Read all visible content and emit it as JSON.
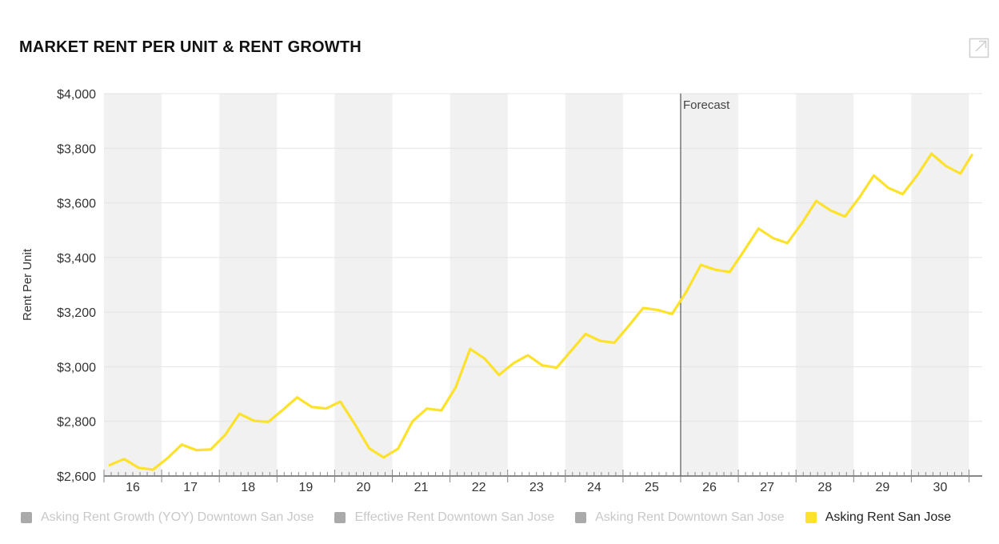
{
  "title": "MARKET RENT PER UNIT & RENT GROWTH",
  "icons": {
    "expand": "expand-icon"
  },
  "colors": {
    "series": "#fce22c",
    "band": "#f1f1f1",
    "grid": "#e4e4e4",
    "axis": "#888888",
    "legend_inactive": "#aaaaaa",
    "forecast_line": "#555555"
  },
  "legend": [
    {
      "label": "Asking Rent Growth (YOY) Downtown San Jose",
      "active": false
    },
    {
      "label": "Effective Rent Downtown San Jose",
      "active": false
    },
    {
      "label": "Asking Rent Downtown San Jose",
      "active": false
    },
    {
      "label": "Asking Rent San Jose",
      "active": true
    }
  ],
  "chart_data": {
    "type": "line",
    "title": "MARKET RENT PER UNIT & RENT GROWTH",
    "xlabel": "",
    "ylabel": "Rent Per Unit",
    "ylim": [
      2600,
      4000
    ],
    "yticks": [
      2600,
      2800,
      3000,
      3200,
      3400,
      3600,
      3800,
      4000
    ],
    "ytick_labels": [
      "$2,600",
      "$2,800",
      "$3,000",
      "$3,200",
      "$3,400",
      "$3,600",
      "$3,800",
      "$4,000"
    ],
    "xlim": [
      2015.5,
      2030.55
    ],
    "categories": [
      "16",
      "17",
      "18",
      "19",
      "20",
      "21",
      "22",
      "23",
      "24",
      "25",
      "26",
      "27",
      "28",
      "29",
      "30"
    ],
    "category_positions": [
      2016,
      2017,
      2018,
      2019,
      2020,
      2021,
      2022,
      2023,
      2024,
      2025,
      2026,
      2027,
      2028,
      2029,
      2030
    ],
    "forecast": {
      "x": 2025.5,
      "label": "Forecast"
    },
    "grid": true,
    "legend_position": "bottom",
    "series": [
      {
        "name": "Asking Rent San Jose",
        "x": [
          2015.6,
          2015.85,
          2016.1,
          2016.35,
          2016.6,
          2016.85,
          2017.1,
          2017.35,
          2017.6,
          2017.85,
          2018.1,
          2018.35,
          2018.6,
          2018.85,
          2019.1,
          2019.35,
          2019.6,
          2019.85,
          2020.1,
          2020.35,
          2020.6,
          2020.85,
          2021.1,
          2021.35,
          2021.6,
          2021.85,
          2022.1,
          2022.35,
          2022.6,
          2022.85,
          2023.1,
          2023.35,
          2023.6,
          2023.85,
          2024.1,
          2024.35,
          2024.6,
          2024.85,
          2025.1,
          2025.35,
          2025.6,
          2025.85,
          2026.1,
          2026.35,
          2026.6,
          2026.85,
          2027.1,
          2027.35,
          2027.6,
          2027.85,
          2028.1,
          2028.35,
          2028.6,
          2028.85,
          2029.1,
          2029.35,
          2029.6,
          2029.85,
          2030.1,
          2030.35,
          2030.55
        ],
        "values": [
          2640,
          2662,
          2630,
          2623,
          2665,
          2715,
          2695,
          2697,
          2750,
          2828,
          2802,
          2798,
          2842,
          2888,
          2853,
          2847,
          2872,
          2790,
          2701,
          2668,
          2700,
          2800,
          2847,
          2840,
          2925,
          3065,
          3030,
          2970,
          3013,
          3042,
          3005,
          2997,
          3058,
          3120,
          3095,
          3088,
          3150,
          3215,
          3208,
          3193,
          3275,
          3373,
          3355,
          3347,
          3425,
          3506,
          3471,
          3453,
          3525,
          3607,
          3572,
          3550,
          3620,
          3700,
          3655,
          3632,
          3700,
          3780,
          3735,
          3707,
          3775
        ]
      }
    ]
  }
}
